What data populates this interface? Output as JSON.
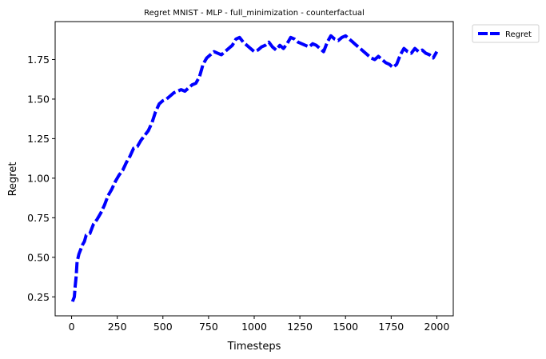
{
  "chart_data": {
    "type": "line",
    "title": "Regret MNIST - MLP - full_minimization - counterfactual",
    "xlabel": "Timesteps",
    "ylabel": "Regret",
    "xlim": [
      -90,
      2090
    ],
    "ylim": [
      0.13,
      1.99
    ],
    "xticks": [
      0,
      250,
      500,
      750,
      1000,
      1250,
      1500,
      1750,
      2000
    ],
    "xtick_labels": [
      "0",
      "250",
      "500",
      "750",
      "1000",
      "1250",
      "1500",
      "1750",
      "2000"
    ],
    "yticks": [
      0.25,
      0.5,
      0.75,
      1.0,
      1.25,
      1.5,
      1.75
    ],
    "ytick_labels": [
      "0.25",
      "0.50",
      "0.75",
      "1.00",
      "1.25",
      "1.50",
      "1.75"
    ],
    "grid": false,
    "legend": {
      "placement": "outside-top-right",
      "entries": [
        "Regret"
      ]
    },
    "series": [
      {
        "name": "Regret",
        "color": "#0000ff",
        "style": "dashed",
        "x": [
          5,
          15,
          20,
          25,
          30,
          40,
          50,
          60,
          70,
          80,
          100,
          120,
          140,
          160,
          180,
          200,
          220,
          240,
          260,
          280,
          300,
          320,
          340,
          360,
          380,
          400,
          420,
          440,
          460,
          480,
          500,
          520,
          540,
          560,
          580,
          600,
          620,
          640,
          660,
          680,
          700,
          720,
          740,
          760,
          780,
          800,
          820,
          840,
          860,
          880,
          900,
          920,
          940,
          960,
          980,
          1000,
          1020,
          1040,
          1060,
          1080,
          1100,
          1120,
          1140,
          1160,
          1180,
          1200,
          1220,
          1240,
          1260,
          1280,
          1300,
          1320,
          1340,
          1360,
          1380,
          1400,
          1420,
          1440,
          1460,
          1480,
          1500,
          1520,
          1540,
          1560,
          1580,
          1600,
          1620,
          1640,
          1660,
          1680,
          1700,
          1720,
          1740,
          1760,
          1780,
          1800,
          1820,
          1840,
          1860,
          1880,
          1900,
          1920,
          1940,
          1960,
          1980,
          2000
        ],
        "y": [
          0.22,
          0.25,
          0.32,
          0.38,
          0.47,
          0.52,
          0.55,
          0.58,
          0.6,
          0.64,
          0.65,
          0.71,
          0.74,
          0.78,
          0.83,
          0.89,
          0.93,
          0.98,
          1.02,
          1.05,
          1.1,
          1.14,
          1.19,
          1.2,
          1.24,
          1.27,
          1.3,
          1.35,
          1.42,
          1.47,
          1.49,
          1.5,
          1.52,
          1.54,
          1.55,
          1.56,
          1.55,
          1.57,
          1.59,
          1.6,
          1.64,
          1.72,
          1.76,
          1.78,
          1.8,
          1.79,
          1.78,
          1.8,
          1.82,
          1.84,
          1.88,
          1.89,
          1.86,
          1.84,
          1.82,
          1.8,
          1.81,
          1.83,
          1.84,
          1.86,
          1.83,
          1.81,
          1.84,
          1.82,
          1.85,
          1.89,
          1.88,
          1.86,
          1.85,
          1.84,
          1.83,
          1.85,
          1.84,
          1.82,
          1.8,
          1.86,
          1.9,
          1.88,
          1.87,
          1.89,
          1.9,
          1.88,
          1.86,
          1.84,
          1.82,
          1.8,
          1.78,
          1.76,
          1.75,
          1.77,
          1.75,
          1.73,
          1.72,
          1.7,
          1.72,
          1.78,
          1.82,
          1.8,
          1.79,
          1.82,
          1.8,
          1.81,
          1.79,
          1.78,
          1.76,
          1.8
        ]
      }
    ]
  }
}
